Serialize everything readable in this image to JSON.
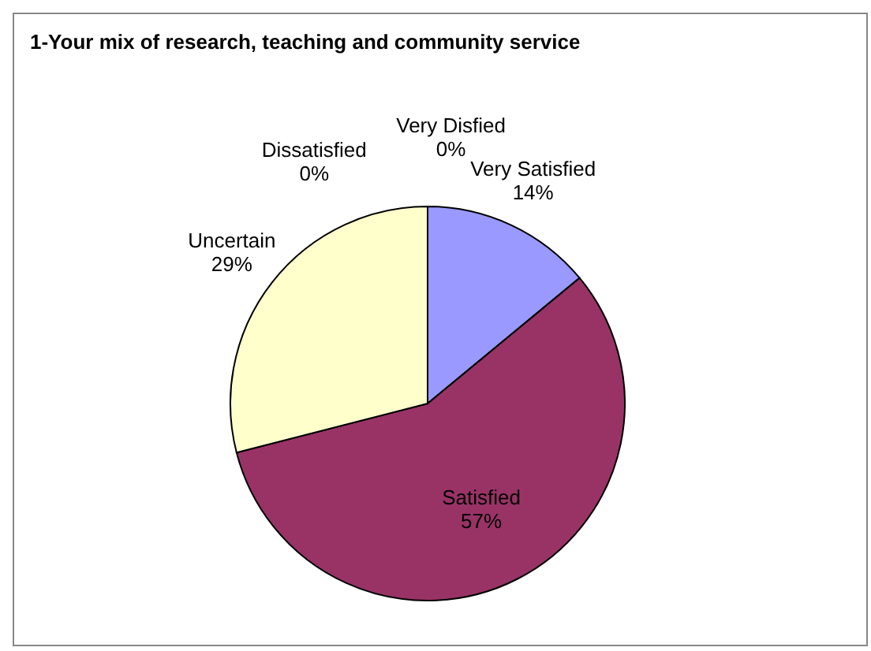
{
  "chart_data": {
    "type": "pie",
    "title": "1-Your mix of research, teaching and community service",
    "categories": [
      "Very Satisfied",
      "Satisfied",
      "Uncertain",
      "Dissatisfied",
      "Very Disfied"
    ],
    "values": [
      14,
      57,
      29,
      0,
      0
    ],
    "value_labels": [
      "14%",
      "57%",
      "29%",
      "0%",
      "0%"
    ],
    "colors": [
      "#9999ff",
      "#993366",
      "#ffffcc",
      "#ccffff",
      "#660066"
    ],
    "legend": false
  }
}
